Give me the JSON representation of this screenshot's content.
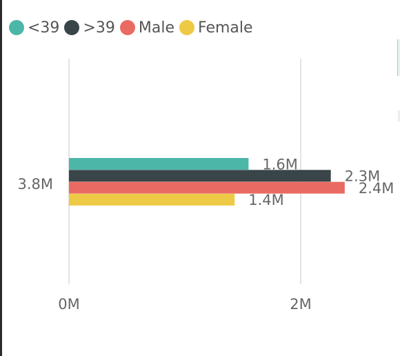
{
  "chart_data": {
    "type": "bar",
    "orientation": "horizontal",
    "categories": [
      "3.8M"
    ],
    "series": [
      {
        "name": "<39",
        "values": [
          1.55
        ],
        "label": "1.6M",
        "color": "#4cb6a8"
      },
      {
        "name": ">39",
        "values": [
          2.26
        ],
        "label": "2.3M",
        "color": "#394549"
      },
      {
        "name": "Male",
        "values": [
          2.38
        ],
        "label": "2.4M",
        "color": "#e96a62"
      },
      {
        "name": "Female",
        "values": [
          1.43
        ],
        "label": "1.4M",
        "color": "#eec945"
      }
    ],
    "xticks": [
      "0M",
      "2M"
    ],
    "xtick_values": [
      0,
      2
    ],
    "legend": "top-left",
    "grid": "vertical",
    "colors": {
      "text": "#666666",
      "grid": "#e3e3e3"
    }
  }
}
